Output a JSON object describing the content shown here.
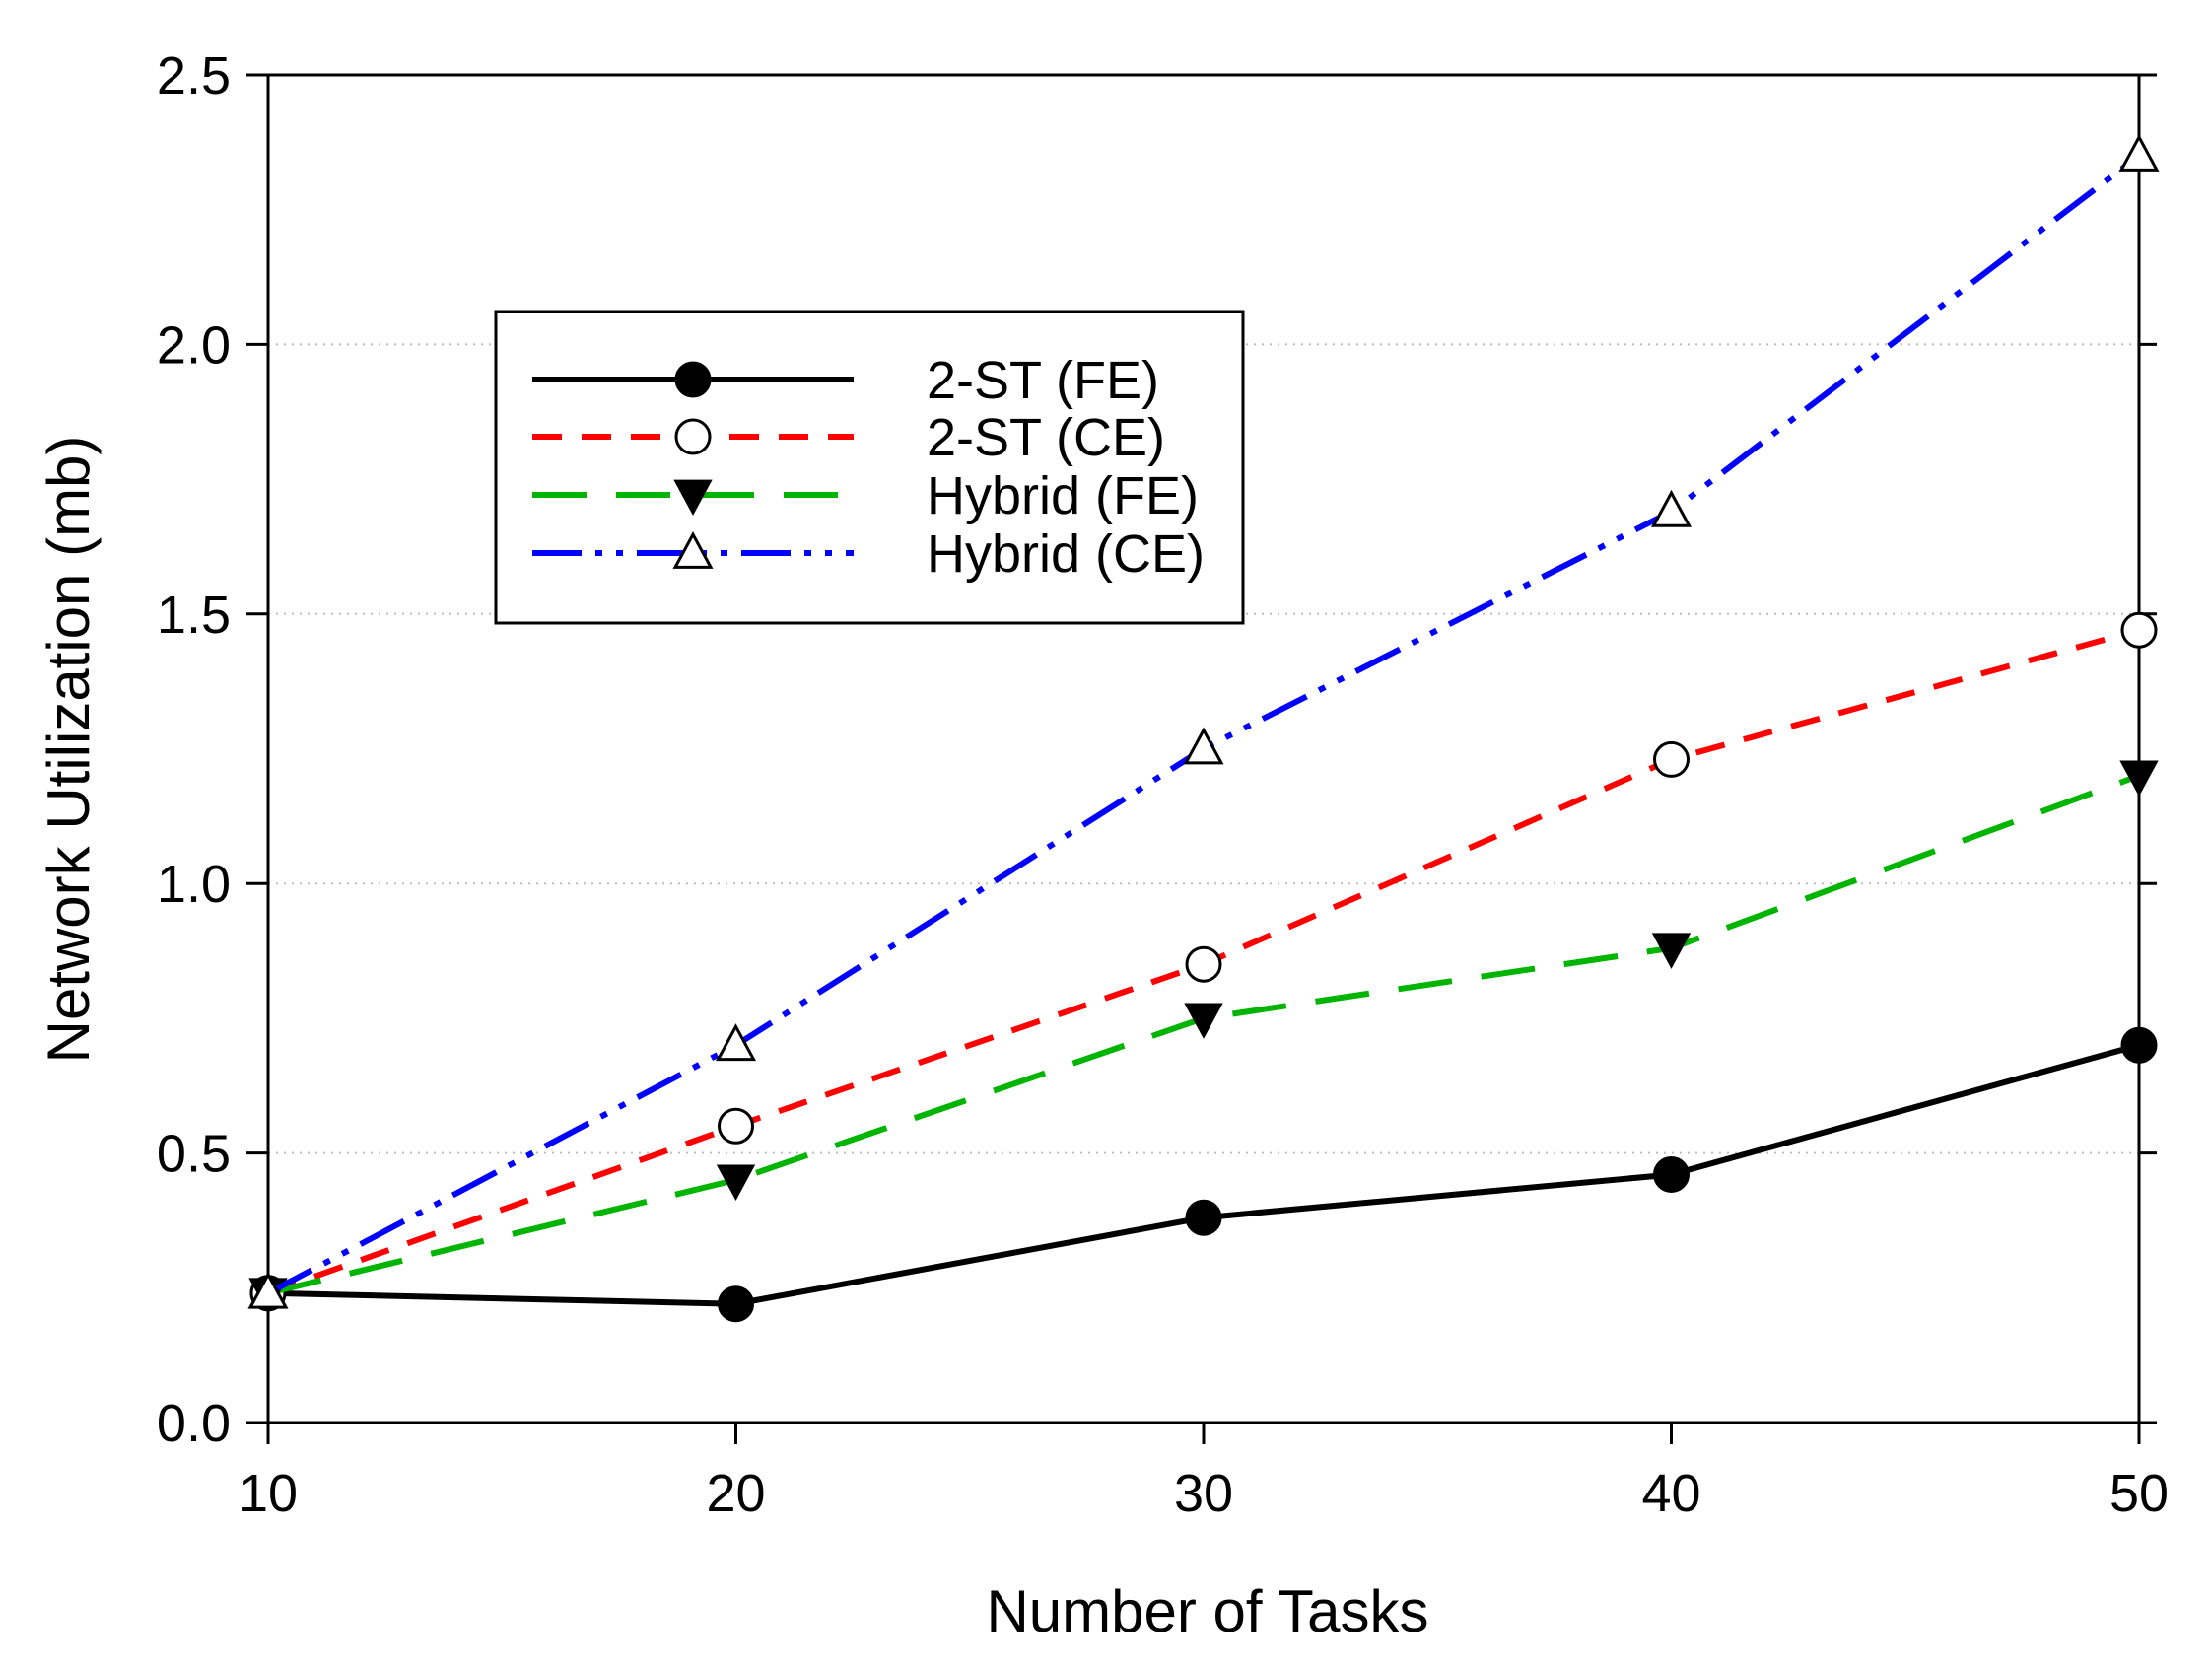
{
  "chart_data": {
    "type": "line",
    "title": "",
    "xlabel": "Number of Tasks",
    "ylabel": "Network Utilization (mb)",
    "x": [
      10,
      20,
      30,
      40,
      50
    ],
    "xlim": [
      10,
      50
    ],
    "ylim": [
      0,
      2.5
    ],
    "xticks": [
      "10",
      "20",
      "30",
      "40",
      "50"
    ],
    "yticks": [
      "0.0",
      "0.5",
      "1.0",
      "1.5",
      "2.0",
      "2.5"
    ],
    "grid": "dotted horizontal at y ticks",
    "legend_position": "upper-left",
    "series": [
      {
        "name": "2-ST (FE)",
        "values": [
          0.24,
          0.22,
          0.38,
          0.46,
          0.7
        ],
        "color": "#000000",
        "line_style": "solid",
        "marker": "filled-circle"
      },
      {
        "name": "2-ST (CE)",
        "values": [
          0.24,
          0.55,
          0.85,
          1.23,
          1.47
        ],
        "color": "#ff0000",
        "line_style": "dashed",
        "marker": "open-circle"
      },
      {
        "name": "Hybrid (FE)",
        "values": [
          0.24,
          0.45,
          0.75,
          0.88,
          1.2
        ],
        "color": "#00b400",
        "line_style": "long-dashed",
        "marker": "filled-triangle-down"
      },
      {
        "name": "Hybrid (CE)",
        "values": [
          0.24,
          0.7,
          1.25,
          1.69,
          2.35
        ],
        "color": "#0000ff",
        "line_style": "dash-dot-dot",
        "marker": "open-triangle-up"
      }
    ]
  }
}
